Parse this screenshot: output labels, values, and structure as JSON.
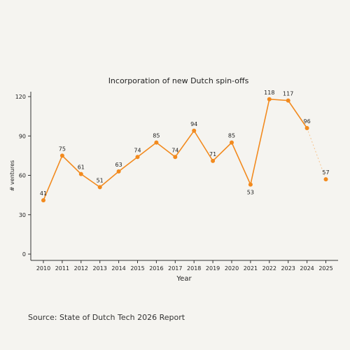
{
  "chart_data": {
    "type": "line",
    "title": "Incorporation of new Dutch spin-offs",
    "xlabel": "Year",
    "ylabel": "# ventures",
    "x": [
      "2010",
      "2011",
      "2012",
      "2013",
      "2014",
      "2015",
      "2016",
      "2017",
      "2018",
      "2019",
      "2020",
      "2021",
      "2022",
      "2023",
      "2024",
      "2025"
    ],
    "series": [
      {
        "values": [
          41,
          75,
          61,
          51,
          63,
          74,
          85,
          74,
          94,
          71,
          85,
          53,
          118,
          117,
          96,
          57
        ]
      }
    ],
    "projected_from_index": 14,
    "ylim": [
      0,
      125
    ],
    "yticks": [
      0,
      30,
      60,
      90,
      120
    ],
    "grid": false,
    "color": "#f28a1e",
    "projection_line_color": "#f6c48f"
  },
  "source": "Source: State of Dutch Tech 2026 Report"
}
